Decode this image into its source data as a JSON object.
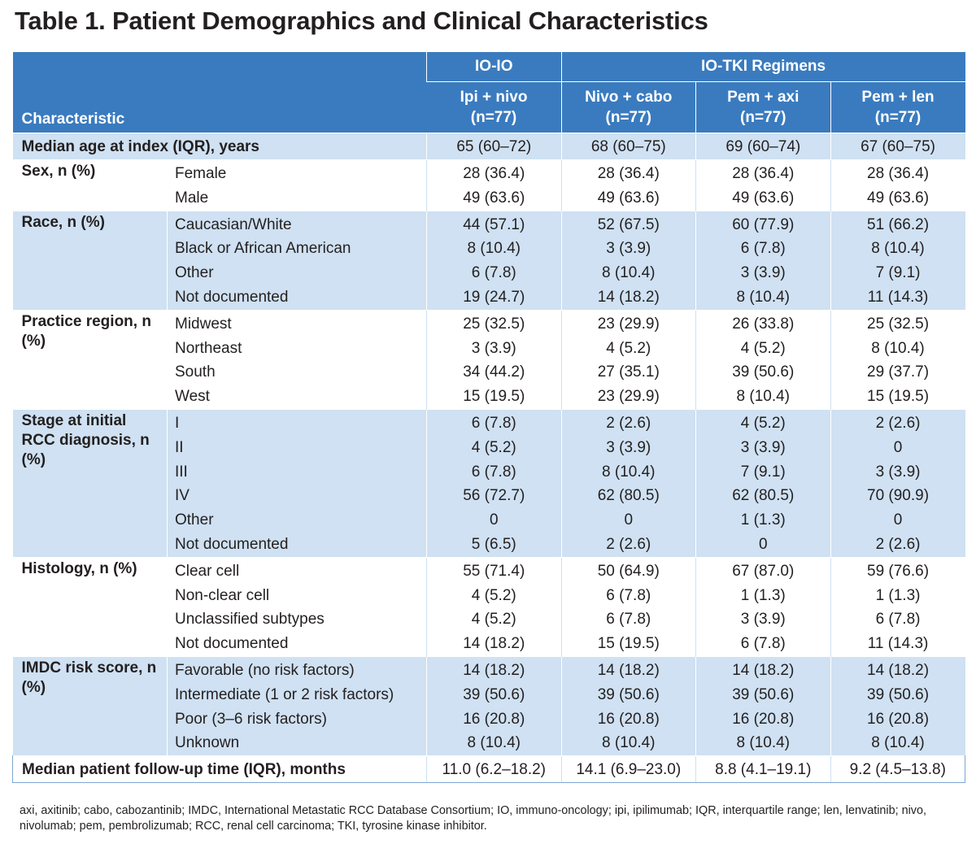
{
  "title": "Table 1. Patient Demographics and Clinical Characteristics",
  "header": {
    "characteristic": "Characteristic",
    "groups": [
      "IO-IO",
      "IO-TKI Regimens"
    ],
    "columns": [
      {
        "name": "Ipi + nivo",
        "n": "(n=77)"
      },
      {
        "name": "Nivo + cabo",
        "n": "(n=77)"
      },
      {
        "name": "Pem + axi",
        "n": "(n=77)"
      },
      {
        "name": "Pem + len",
        "n": "(n=77)"
      }
    ]
  },
  "rows": [
    {
      "label": "Median age at index (IQR), years",
      "subs": [
        ""
      ],
      "values": [
        [
          "65 (60–72)"
        ],
        [
          "68 (60–75)"
        ],
        [
          "69 (60–74)"
        ],
        [
          "67 (60–75)"
        ]
      ]
    },
    {
      "label": "Sex, n (%)",
      "subs": [
        "Female",
        "Male"
      ],
      "values": [
        [
          "28 (36.4)",
          "49 (63.6)"
        ],
        [
          "28 (36.4)",
          "49 (63.6)"
        ],
        [
          "28 (36.4)",
          "49 (63.6)"
        ],
        [
          "28 (36.4)",
          "49 (63.6)"
        ]
      ]
    },
    {
      "label": "Race, n (%)",
      "subs": [
        "Caucasian/White",
        "Black or African American",
        "Other",
        "Not documented"
      ],
      "values": [
        [
          "44 (57.1)",
          "8 (10.4)",
          "6 (7.8)",
          "19 (24.7)"
        ],
        [
          "52 (67.5)",
          "3 (3.9)",
          "8 (10.4)",
          "14 (18.2)"
        ],
        [
          "60 (77.9)",
          "6 (7.8)",
          "3 (3.9)",
          "8 (10.4)"
        ],
        [
          "51 (66.2)",
          "8 (10.4)",
          "7 (9.1)",
          "11 (14.3)"
        ]
      ]
    },
    {
      "label": "Practice region, n (%)",
      "subs": [
        "Midwest",
        "Northeast",
        "South",
        "West"
      ],
      "values": [
        [
          "25 (32.5)",
          "3 (3.9)",
          "34 (44.2)",
          "15 (19.5)"
        ],
        [
          "23 (29.9)",
          "4 (5.2)",
          "27 (35.1)",
          "23 (29.9)"
        ],
        [
          "26 (33.8)",
          "4 (5.2)",
          "39 (50.6)",
          "8 (10.4)"
        ],
        [
          "25 (32.5)",
          "8 (10.4)",
          "29 (37.7)",
          "15 (19.5)"
        ]
      ]
    },
    {
      "label": "Stage at initial RCC diagnosis, n (%)",
      "subs": [
        "I",
        "II",
        "III",
        "IV",
        "Other",
        "Not documented"
      ],
      "values": [
        [
          "6 (7.8)",
          "4 (5.2)",
          "6 (7.8)",
          "56 (72.7)",
          "0",
          "5 (6.5)"
        ],
        [
          "2 (2.6)",
          "3 (3.9)",
          "8 (10.4)",
          "62 (80.5)",
          "0",
          "2 (2.6)"
        ],
        [
          "4 (5.2)",
          "3 (3.9)",
          "7 (9.1)",
          "62 (80.5)",
          "1 (1.3)",
          "0"
        ],
        [
          "2 (2.6)",
          "0",
          "3 (3.9)",
          "70 (90.9)",
          "0",
          "2 (2.6)"
        ]
      ]
    },
    {
      "label": "Histology, n (%)",
      "subs": [
        "Clear cell",
        "Non-clear cell",
        "Unclassified subtypes",
        "Not documented"
      ],
      "values": [
        [
          "55 (71.4)",
          "4 (5.2)",
          "4 (5.2)",
          "14 (18.2)"
        ],
        [
          "50 (64.9)",
          "6 (7.8)",
          "6 (7.8)",
          "15 (19.5)"
        ],
        [
          "67 (87.0)",
          "1 (1.3)",
          "3 (3.9)",
          "6 (7.8)"
        ],
        [
          "59 (76.6)",
          "1 (1.3)",
          "6 (7.8)",
          "11 (14.3)"
        ]
      ]
    },
    {
      "label": "IMDC risk score, n (%)",
      "subs": [
        "Favorable (no risk factors)",
        "Intermediate (1 or 2 risk factors)",
        "Poor (3–6 risk factors)",
        "Unknown"
      ],
      "values": [
        [
          "14 (18.2)",
          "39 (50.6)",
          "16 (20.8)",
          "8 (10.4)"
        ],
        [
          "14 (18.2)",
          "39 (50.6)",
          "16 (20.8)",
          "8 (10.4)"
        ],
        [
          "14 (18.2)",
          "39 (50.6)",
          "16 (20.8)",
          "8 (10.4)"
        ],
        [
          "14 (18.2)",
          "39 (50.6)",
          "16 (20.8)",
          "8 (10.4)"
        ]
      ]
    },
    {
      "label": "Median patient follow-up time (IQR), months",
      "subs": [
        ""
      ],
      "values": [
        [
          "11.0 (6.2–18.2)"
        ],
        [
          "14.1 (6.9–23.0)"
        ],
        [
          "8.8 (4.1–19.1)"
        ],
        [
          "9.2 (4.5–13.8)"
        ]
      ]
    }
  ],
  "footnote": "axi, axitinib; cabo, cabozantinib; IMDC, International Metastatic RCC Database Consortium; IO, immuno-oncology; ipi, ipilimumab; IQR, interquartile range; len, lenvatinib; nivo, nivolumab; pem, pembrolizumab; RCC, renal cell carcinoma; TKI, tyrosine kinase inhibitor."
}
